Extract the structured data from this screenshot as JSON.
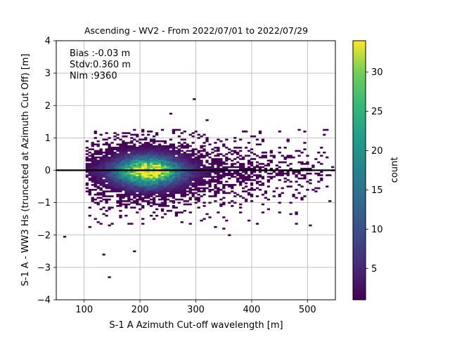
{
  "chart_data": {
    "type": "heatmap",
    "title": "Ascending - WV2 - From 2022/07/01 to 2022/07/29",
    "xlabel": "S-1 A Azimuth Cut-off wavelength [m]",
    "ylabel": "S-1 A - WW3 Hs (truncated at Azimuth Cut Off) [m]",
    "xlim": [
      50,
      550
    ],
    "ylim": [
      -4,
      4
    ],
    "xticks": [
      "100",
      "200",
      "300",
      "400",
      "500"
    ],
    "xtick_values": [
      100,
      200,
      300,
      400,
      500
    ],
    "yticks": [
      "−4",
      "−3",
      "−2",
      "−1",
      "0",
      "1",
      "2",
      "3",
      "4"
    ],
    "ytick_values": [
      -4,
      -3,
      -2,
      -1,
      0,
      1,
      2,
      3,
      4
    ],
    "grid": true,
    "annotations": [
      "Bias :-0.03 m",
      "Stdv:0.360 m",
      "Nim :9360"
    ],
    "reference_line_y": 0,
    "colorbar": {
      "label": "count",
      "min": 1,
      "max": 34,
      "ticks": [
        "5",
        "10",
        "15",
        "20",
        "25",
        "30"
      ],
      "tick_values": [
        5,
        10,
        15,
        20,
        25,
        30
      ],
      "colormap": "viridis"
    },
    "bin_width_x": 5,
    "bin_height_y": 0.05,
    "density_model": {
      "center": [
        215,
        -0.03
      ],
      "sigma_x": 38,
      "sigma_y": 0.3,
      "peak_count": 33
    },
    "outlier_bins": [
      [
        297,
        2.2
      ],
      [
        255,
        1.75
      ],
      [
        240,
        1.25
      ],
      [
        320,
        1.55
      ],
      [
        410,
        0.45
      ],
      [
        420,
        0.55
      ],
      [
        430,
        0.2
      ],
      [
        520,
        -0.1
      ],
      [
        470,
        -0.5
      ],
      [
        430,
        -1.2
      ],
      [
        360,
        -2.0
      ],
      [
        350,
        -1.8
      ],
      [
        190,
        -2.5
      ],
      [
        135,
        -2.6
      ],
      [
        145,
        -3.3
      ],
      [
        65,
        -2.05
      ],
      [
        110,
        -1.75
      ],
      [
        140,
        -1.4
      ],
      [
        205,
        -1.65
      ],
      [
        310,
        -1.55
      ],
      [
        335,
        -1.75
      ]
    ]
  }
}
